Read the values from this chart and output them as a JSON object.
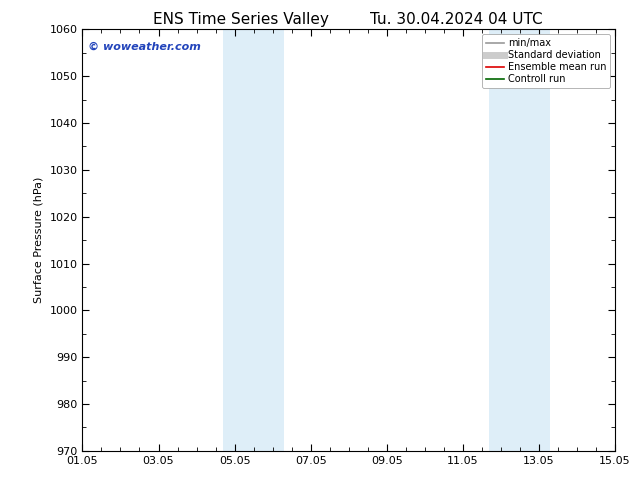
{
  "title_left": "ENS Time Series Valley",
  "title_right": "Tu. 30.04.2024 04 UTC",
  "ylabel": "Surface Pressure (hPa)",
  "xlim_num": [
    0,
    14
  ],
  "xtick_positions": [
    0,
    2,
    4,
    6,
    8,
    10,
    12,
    14
  ],
  "xtick_labels": [
    "01.05",
    "03.05",
    "05.05",
    "07.05",
    "09.05",
    "11.05",
    "13.05",
    "15.05"
  ],
  "ylim": [
    970,
    1060
  ],
  "ytick_positions": [
    970,
    980,
    990,
    1000,
    1010,
    1020,
    1030,
    1040,
    1050,
    1060
  ],
  "shaded_regions": [
    {
      "xmin": 3.7,
      "xmax": 5.3,
      "color": "#deeef8"
    },
    {
      "xmin": 10.7,
      "xmax": 12.3,
      "color": "#deeef8"
    }
  ],
  "background_color": "#ffffff",
  "plot_bg_color": "#ffffff",
  "watermark_text": "© woweather.com",
  "watermark_color": "#2244bb",
  "legend_items": [
    {
      "label": "min/max",
      "color": "#999999",
      "lw": 1.2,
      "style": "solid"
    },
    {
      "label": "Standard deviation",
      "color": "#cccccc",
      "lw": 5,
      "style": "solid"
    },
    {
      "label": "Ensemble mean run",
      "color": "#dd0000",
      "lw": 1.2,
      "style": "solid"
    },
    {
      "label": "Controll run",
      "color": "#006600",
      "lw": 1.2,
      "style": "solid"
    }
  ],
  "title_fontsize": 11,
  "label_fontsize": 8,
  "tick_fontsize": 8,
  "legend_fontsize": 7,
  "watermark_fontsize": 8
}
